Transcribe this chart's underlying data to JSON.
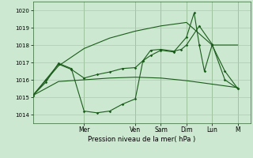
{
  "background_color": "#cce8d0",
  "grid_color": "#aaccaa",
  "line_color": "#1a5c1a",
  "ylim": [
    1013.5,
    1020.5
  ],
  "yticks": [
    1014,
    1015,
    1016,
    1017,
    1018,
    1019,
    1020
  ],
  "xlabel": "Pression niveau de la mer( hPa )",
  "day_labels": [
    "Mer",
    "Ven",
    "Sam",
    "Dim",
    "Lun",
    "M"
  ],
  "day_positions": [
    2,
    4,
    5,
    6,
    7,
    8
  ],
  "xlim": [
    0,
    8.5
  ],
  "series1_x": [
    0,
    1.0,
    2.0,
    3.0,
    4.0,
    5.0,
    6.0,
    7.0,
    8.0
  ],
  "series1_y": [
    1015.1,
    1015.9,
    1016.0,
    1016.1,
    1016.15,
    1016.1,
    1015.95,
    1015.75,
    1015.55
  ],
  "series2_x": [
    0,
    1.0,
    2.0,
    3.0,
    4.0,
    5.0,
    6.0,
    7.0,
    8.0
  ],
  "series2_y": [
    1015.1,
    1016.8,
    1017.8,
    1018.4,
    1018.8,
    1019.1,
    1019.3,
    1018.0,
    1018.0
  ],
  "series3_x": [
    0,
    0.5,
    1.0,
    1.5,
    2.0,
    2.5,
    3.0,
    3.5,
    4.0,
    4.3,
    4.6,
    5.0,
    5.5,
    6.0,
    6.3,
    6.5,
    6.7,
    7.0,
    7.5,
    8.0
  ],
  "series3_y": [
    1015.1,
    1015.85,
    1016.95,
    1016.65,
    1014.2,
    1014.1,
    1014.2,
    1014.6,
    1014.9,
    1017.1,
    1017.4,
    1017.7,
    1017.6,
    1018.45,
    1019.85,
    1018.0,
    1016.5,
    1018.0,
    1016.5,
    1015.5
  ],
  "series4_x": [
    0,
    0.5,
    1.0,
    1.5,
    2.0,
    2.5,
    3.0,
    3.5,
    4.0,
    4.3,
    4.6,
    5.0,
    5.5,
    5.8,
    6.0,
    6.5,
    7.0,
    7.5,
    8.0
  ],
  "series4_y": [
    1015.1,
    1016.0,
    1016.9,
    1016.6,
    1016.1,
    1016.3,
    1016.45,
    1016.65,
    1016.7,
    1017.1,
    1017.7,
    1017.75,
    1017.65,
    1017.75,
    1018.0,
    1019.1,
    1018.05,
    1016.0,
    1015.5
  ]
}
